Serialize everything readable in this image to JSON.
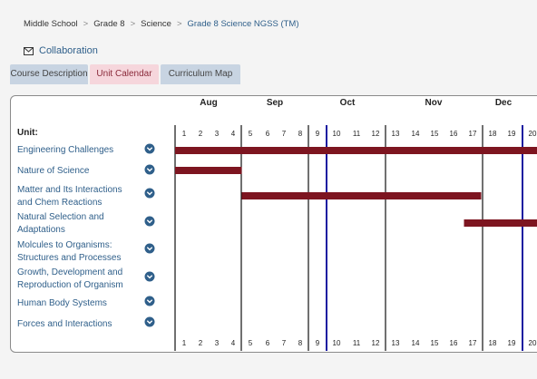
{
  "breadcrumb": {
    "items": [
      "Middle School",
      "Grade 8",
      "Science"
    ],
    "current": "Grade 8 Science NGSS (TM)",
    "separator": ">"
  },
  "collaboration": {
    "label": "Collaboration",
    "icon": "envelope-icon"
  },
  "tabs": [
    {
      "label": "Course Description",
      "active": false
    },
    {
      "label": "Unit Calendar",
      "active": true
    },
    {
      "label": "Curriculum Map",
      "active": false
    }
  ],
  "calendar": {
    "unit_header": "Unit:",
    "months": [
      "Aug",
      "Sep",
      "Oct",
      "Nov",
      "Dec"
    ],
    "weeks": [
      "1",
      "2",
      "3",
      "4",
      "5",
      "6",
      "7",
      "8",
      "9",
      "10",
      "11",
      "12",
      "13",
      "14",
      "15",
      "16",
      "17",
      "18",
      "19",
      "20"
    ],
    "units": [
      {
        "label": "Engineering Challenges",
        "bar": [
          1,
          20
        ]
      },
      {
        "label": "Nature of Science",
        "bar": [
          1,
          4
        ]
      },
      {
        "label": "Matter and Its Interactions and Chem Reactions",
        "bar": [
          5,
          17
        ]
      },
      {
        "label": "Natural Selection and Adaptations",
        "bar": [
          17,
          20
        ]
      },
      {
        "label": "Molcules to Organisms: Structures and Processes",
        "bar": null
      },
      {
        "label": "Growth, Development and Reproduction of Organism",
        "bar": null
      },
      {
        "label": "Human Body Systems",
        "bar": null
      },
      {
        "label": "Forces and Interactions",
        "bar": null
      }
    ],
    "colors": {
      "bar": "#7d1520",
      "grid": "#111111",
      "accent_line": "#1a1aa0",
      "link": "#2f5f8a"
    }
  }
}
